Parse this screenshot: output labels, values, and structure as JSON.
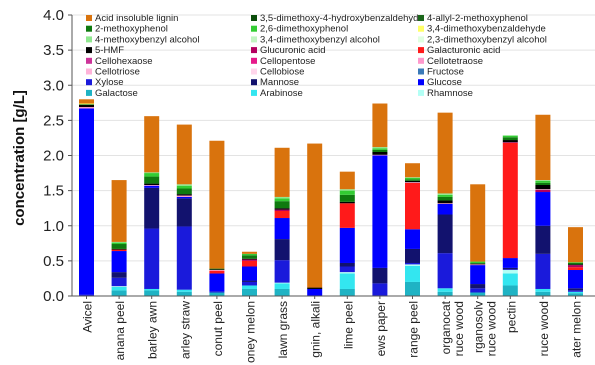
{
  "chart_data": {
    "type": "bar",
    "stacked": true,
    "ylabel": "concentration [g/L]",
    "xlabel": "",
    "ylim": [
      0,
      4.0
    ],
    "y_ticks": [
      "0.0",
      "0.5",
      "1.0",
      "1.5",
      "2.0",
      "2.5",
      "3.0",
      "3.5",
      "4.0"
    ],
    "legend_position": "top",
    "categories": [
      "Avicel",
      "banana peel",
      "barley awn",
      "barley straw",
      "coconut peel",
      "honey melon",
      "lawn grass",
      "lignin, alkali",
      "lime peel",
      "news paper",
      "orange peel",
      "organocat spruce wood",
      "organosolv spruce wood",
      "pectin",
      "spruce wood",
      "water melon",
      "xylan"
    ],
    "category_labels": [
      "Avicel",
      "anana peel",
      "barley awn",
      "arley straw",
      "conut peel",
      "oney melon",
      "lawn grass",
      "gnin, alkali",
      "lime peel",
      "ews paper",
      "range peel",
      "organocat\nruce wood",
      "rganosolv\nruce wood",
      "pectin",
      "ruce wood",
      "ater melon",
      "xylan"
    ],
    "series": [
      {
        "name": "Galactose",
        "color": "#1fb3c4",
        "values": [
          0,
          0.08,
          0.08,
          0.06,
          0.05,
          0.1,
          0.1,
          0,
          0.1,
          0,
          0.2,
          0.06,
          0.05,
          0.15,
          0.06,
          0.04,
          0
        ]
      },
      {
        "name": "Arabinose",
        "color": "#33e6f0",
        "values": [
          0,
          0.05,
          0.02,
          0.03,
          0,
          0.05,
          0.08,
          0,
          0.22,
          0,
          0.23,
          0.05,
          0,
          0.17,
          0.04,
          0.02,
          0
        ]
      },
      {
        "name": "Rhamnose",
        "color": "#b3fff5",
        "values": [
          0,
          0.01,
          0,
          0,
          0,
          0,
          0.01,
          0,
          0.02,
          0,
          0.02,
          0,
          0,
          0.05,
          0,
          0,
          0
        ]
      },
      {
        "name": "Xylose",
        "color": "#1a1adb",
        "values": [
          0.02,
          0.12,
          0.86,
          0.9,
          0.02,
          0.05,
          0.32,
          0,
          0.08,
          0.18,
          0.02,
          0.5,
          0.06,
          0.01,
          0.5,
          0.02,
          1.12
        ]
      },
      {
        "name": "Mannose",
        "color": "#12126e",
        "values": [
          0,
          0.08,
          0.58,
          0.4,
          0,
          0.02,
          0.3,
          0,
          0.05,
          0.22,
          0.2,
          0.55,
          0.06,
          0.02,
          0.4,
          0.03,
          0.05
        ]
      },
      {
        "name": "Glucose",
        "color": "#0000ff",
        "values": [
          2.65,
          0.3,
          0.03,
          0.02,
          0.25,
          0.2,
          0.3,
          0.1,
          0.5,
          1.6,
          0.28,
          0.15,
          0.27,
          0.14,
          0.48,
          0.26,
          0
        ]
      },
      {
        "name": "Galacturonic acid",
        "color": "#ff1a1a",
        "values": [
          0,
          0.02,
          0,
          0,
          0.04,
          0.08,
          0.1,
          0,
          0.35,
          0,
          0.66,
          0,
          0,
          1.64,
          0,
          0.04,
          0
        ]
      },
      {
        "name": "Glucuronic acid",
        "color": "#b3005f",
        "values": [
          0,
          0,
          0,
          0,
          0,
          0.02,
          0.02,
          0,
          0,
          0,
          0,
          0,
          0,
          0.01,
          0.03,
          0.03,
          0
        ]
      },
      {
        "name": "Cellotetraose",
        "color": "#ff99cc",
        "values": [
          0.02,
          0,
          0.01,
          0.02,
          0.01,
          0,
          0,
          0,
          0,
          0.01,
          0.01,
          0.01,
          0.01,
          0,
          0.01,
          0,
          0.02
        ]
      },
      {
        "name": "5-HMF",
        "color": "#000000",
        "values": [
          0.03,
          0.01,
          0.02,
          0.02,
          0.01,
          0.01,
          0.02,
          0.02,
          0.02,
          0.04,
          0.02,
          0.04,
          0.01,
          0.03,
          0.06,
          0.01,
          0.03
        ]
      },
      {
        "name": "2-methoxyphenol",
        "color": "#0f7a0f",
        "values": [
          0.01,
          0.07,
          0.1,
          0.08,
          0.01,
          0.05,
          0.1,
          0,
          0.1,
          0.03,
          0.02,
          0.05,
          0.01,
          0.04,
          0.03,
          0.02,
          0.12
        ]
      },
      {
        "name": "2,6-dimethoxyphenol",
        "color": "#33cc33",
        "values": [
          0,
          0.02,
          0.05,
          0.04,
          0,
          0.02,
          0.04,
          0,
          0.06,
          0.02,
          0.02,
          0.03,
          0.02,
          0.02,
          0.03,
          0.01,
          0.05
        ]
      },
      {
        "name": "4-methoxybenzyl alcohol",
        "color": "#8fe88f",
        "values": [
          0,
          0.01,
          0.01,
          0.02,
          0,
          0,
          0.02,
          0,
          0.02,
          0.02,
          0.01,
          0.02,
          0,
          0.01,
          0.01,
          0,
          0.02
        ]
      },
      {
        "name": "3,4-dimethoxybenzaldehyde",
        "color": "#ffff66",
        "values": [
          0.01,
          0,
          0,
          0,
          0,
          0,
          0,
          0,
          0,
          0,
          0,
          0,
          0,
          0,
          0,
          0,
          0
        ]
      },
      {
        "name": "Acid insoluble lignin",
        "color": "#d9730d",
        "values": [
          0.06,
          0.88,
          0.8,
          0.85,
          1.82,
          0.03,
          0.7,
          2.05,
          0.25,
          0.62,
          0.2,
          1.15,
          1.1,
          0,
          0.93,
          0.5,
          0.11
        ]
      }
    ]
  },
  "legend": [
    {
      "name": "Acid insoluble lignin",
      "color": "#d9730d"
    },
    {
      "name": "3,5-dimethoxy-4-hydroxybenzaldehyde",
      "color": "#0a4d0a"
    },
    {
      "name": "4-allyl-2-methoxyphenol",
      "color": "#1a661a"
    },
    {
      "name": "2-methoxyphenol",
      "color": "#0f7a0f"
    },
    {
      "name": "2,6-dimethoxyphenol",
      "color": "#33cc33"
    },
    {
      "name": "3,4-dimethoxybenzaldehyde",
      "color": "#ffff66"
    },
    {
      "name": "4-methoxybenzyl alcohol",
      "color": "#8fe88f"
    },
    {
      "name": "3,4-dimethoxybenzyl alcohol",
      "color": "#c2f5c2"
    },
    {
      "name": "2,3-dimethoxybenzyl alcohol",
      "color": "#e0ffe0"
    },
    {
      "name": "5-HMF",
      "color": "#000000"
    },
    {
      "name": "Glucuronic acid",
      "color": "#b3005f"
    },
    {
      "name": "Galacturonic acid",
      "color": "#ff1a1a"
    },
    {
      "name": "Cellohexaose",
      "color": "#cc3399"
    },
    {
      "name": "Cellopentose",
      "color": "#e6198a"
    },
    {
      "name": "Cellotetraose",
      "color": "#ff99cc"
    },
    {
      "name": "Cellotriose",
      "color": "#ffb3d9"
    },
    {
      "name": "Cellobiose",
      "color": "#ffd6eb"
    },
    {
      "name": "Fructose",
      "color": "#3a7ab8"
    },
    {
      "name": "Xylose",
      "color": "#1a1adb"
    },
    {
      "name": "Mannose",
      "color": "#12126e"
    },
    {
      "name": "Glucose",
      "color": "#0000ff"
    },
    {
      "name": "Galactose",
      "color": "#1fb3c4"
    },
    {
      "name": "Arabinose",
      "color": "#33e6f0"
    },
    {
      "name": "Rhamnose",
      "color": "#b3fff5"
    }
  ]
}
